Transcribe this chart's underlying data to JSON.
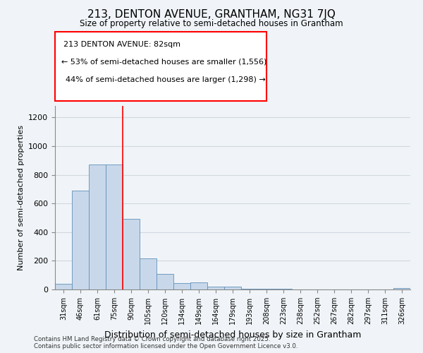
{
  "title1": "213, DENTON AVENUE, GRANTHAM, NG31 7JQ",
  "title2": "Size of property relative to semi-detached houses in Grantham",
  "xlabel": "Distribution of semi-detached houses by size in Grantham",
  "ylabel": "Number of semi-detached properties",
  "categories": [
    "31sqm",
    "46sqm",
    "61sqm",
    "75sqm",
    "90sqm",
    "105sqm",
    "120sqm",
    "134sqm",
    "149sqm",
    "164sqm",
    "179sqm",
    "193sqm",
    "208sqm",
    "223sqm",
    "238sqm",
    "252sqm",
    "267sqm",
    "282sqm",
    "297sqm",
    "311sqm",
    "326sqm"
  ],
  "values": [
    40,
    690,
    870,
    870,
    490,
    215,
    110,
    45,
    50,
    20,
    20,
    5,
    5,
    3,
    2,
    2,
    1,
    1,
    1,
    1,
    10
  ],
  "bar_color": "#c8d8ea",
  "bar_edge_color": "#6090b8",
  "grid_color": "#d0d8e0",
  "red_line_x": 3.5,
  "annotation_text_line1": "213 DENTON AVENUE: 82sqm",
  "annotation_text_line2": "← 53% of semi-detached houses are smaller (1,556)",
  "annotation_text_line3": "44% of semi-detached houses are larger (1,298) →",
  "footnote": "Contains HM Land Registry data © Crown copyright and database right 2025.\nContains public sector information licensed under the Open Government Licence v3.0.",
  "ylim": [
    0,
    1280
  ],
  "yticks": [
    0,
    200,
    400,
    600,
    800,
    1000,
    1200
  ],
  "background_color": "#f0f4f8"
}
